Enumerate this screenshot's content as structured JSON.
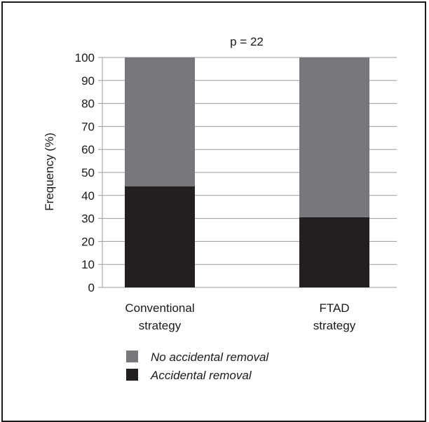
{
  "chart_data": {
    "type": "bar",
    "stacked": true,
    "annotation": "p = 22",
    "ylabel": "Frequency (%)",
    "xlabel": "",
    "ylim": [
      0,
      100
    ],
    "yticks": [
      0,
      10,
      20,
      30,
      40,
      50,
      60,
      70,
      80,
      90,
      100
    ],
    "grid": true,
    "categories": [
      [
        "Conventional",
        "strategy"
      ],
      [
        "FTAD",
        "strategy"
      ]
    ],
    "series": [
      {
        "name": "Accidental removal",
        "values": [
          44,
          30.5
        ],
        "color": "#231f20"
      },
      {
        "name": "No accidental removal",
        "values": [
          56,
          69.5
        ],
        "color": "#77787b"
      }
    ],
    "legend": {
      "placement": "bottom-left",
      "order": [
        "No accidental removal",
        "Accidental removal"
      ]
    }
  }
}
